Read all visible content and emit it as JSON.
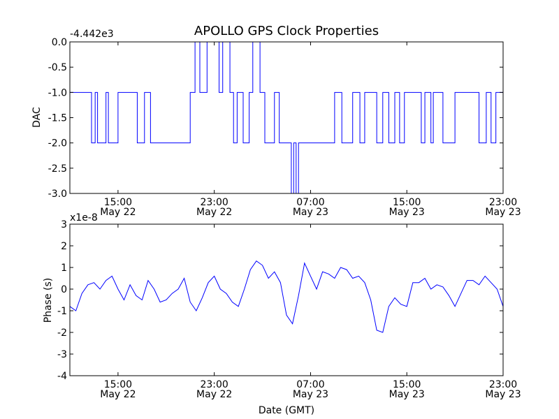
{
  "chart_data": [
    {
      "type": "line",
      "title": "APOLLO GPS Clock Properties",
      "offset_label": "-4.442e3",
      "ylabel": "DAC",
      "xlabel": "",
      "ylim": [
        -3.0,
        0.0
      ],
      "xlim": [
        0,
        36
      ],
      "yticks": [
        0.0,
        -0.5,
        -1.0,
        -1.5,
        -2.0,
        -2.5,
        -3.0
      ],
      "ytick_labels": [
        "0.0",
        "-0.5",
        "-1.0",
        "-1.5",
        "-2.0",
        "-2.5",
        "-3.0"
      ],
      "xticks": [
        {
          "x": 4,
          "time": "15:00",
          "date": "May 22"
        },
        {
          "x": 12,
          "time": "23:00",
          "date": "May 22"
        },
        {
          "x": 20,
          "time": "07:00",
          "date": "May 23"
        },
        {
          "x": 28,
          "time": "15:00",
          "date": "May 23"
        },
        {
          "x": 36,
          "time": "23:00",
          "date": "May 23"
        }
      ],
      "line_color": "#0000ff",
      "series": [
        {
          "x": [
            0.0,
            1.8,
            1.8,
            2.1,
            2.1,
            2.3,
            2.3,
            3.0,
            3.0,
            3.2,
            3.2,
            4.0,
            4.0,
            5.6,
            5.6,
            6.2,
            6.2,
            6.7,
            6.7,
            10.0,
            10.0,
            10.4,
            10.4,
            10.8,
            10.8,
            11.4,
            11.4,
            12.4,
            12.4,
            12.7,
            12.7,
            13.3,
            13.3,
            13.6,
            13.6,
            13.9,
            13.9,
            14.4,
            14.4,
            14.9,
            14.9,
            15.2,
            15.2,
            15.8,
            15.8,
            16.2,
            16.2,
            17.0,
            17.0,
            17.4,
            17.4,
            17.7,
            17.7,
            18.4,
            18.4,
            18.6,
            18.6,
            18.8,
            18.8,
            19.0,
            19.0,
            22.0,
            22.0,
            22.6,
            22.6,
            23.5,
            23.5,
            24.1,
            24.1,
            24.5,
            24.5,
            25.5,
            25.5,
            26.0,
            26.0,
            26.5,
            26.5,
            27.0,
            27.0,
            27.4,
            27.4,
            27.8,
            27.8,
            29.2,
            29.2,
            29.5,
            29.5,
            30.0,
            30.0,
            30.2,
            30.2,
            31.0,
            31.0,
            32.0,
            32.0,
            34.0,
            34.0,
            34.6,
            34.6,
            35.0,
            35.0,
            35.4,
            35.4,
            36.0
          ],
          "y": [
            -1.0,
            -1.0,
            -2.0,
            -2.0,
            -1.0,
            -1.0,
            -2.0,
            -2.0,
            -1.0,
            -1.0,
            -2.0,
            -2.0,
            -1.0,
            -1.0,
            -2.0,
            -2.0,
            -1.0,
            -1.0,
            -2.0,
            -2.0,
            -1.0,
            -1.0,
            0.0,
            0.0,
            -1.0,
            -1.0,
            0.0,
            0.0,
            -1.0,
            -1.0,
            0.0,
            0.0,
            -1.0,
            -1.0,
            -2.0,
            -2.0,
            -1.0,
            -1.0,
            -2.0,
            -2.0,
            -1.0,
            -1.0,
            0.0,
            0.0,
            -1.0,
            -1.0,
            -2.0,
            -2.0,
            -1.0,
            -1.0,
            -2.0,
            -2.0,
            -2.0,
            -2.0,
            -3.0,
            -3.0,
            -2.0,
            -2.0,
            -3.0,
            -3.0,
            -2.0,
            -2.0,
            -1.0,
            -1.0,
            -2.0,
            -2.0,
            -1.0,
            -1.0,
            -2.0,
            -2.0,
            -1.0,
            -1.0,
            -2.0,
            -2.0,
            -1.0,
            -1.0,
            -2.0,
            -2.0,
            -1.0,
            -1.0,
            -2.0,
            -2.0,
            -1.0,
            -1.0,
            -2.0,
            -2.0,
            -1.0,
            -1.0,
            -2.0,
            -2.0,
            -1.0,
            -1.0,
            -2.0,
            -2.0,
            -1.0,
            -1.0,
            -2.0,
            -2.0,
            -1.0,
            -1.0,
            -2.0,
            -2.0,
            -1.0,
            -1.0
          ]
        }
      ]
    },
    {
      "type": "line",
      "title": "",
      "offset_label": "x1e-8",
      "ylabel": "Phase (s)",
      "xlabel": "Date (GMT)",
      "ylim": [
        -4,
        3
      ],
      "xlim": [
        0,
        36
      ],
      "yticks": [
        3,
        2,
        1,
        0,
        -1,
        -2,
        -3,
        -4
      ],
      "ytick_labels": [
        "3",
        "2",
        "1",
        "0",
        "-1",
        "-2",
        "-3",
        "-4"
      ],
      "xticks": [
        {
          "x": 4,
          "time": "15:00",
          "date": "May 22"
        },
        {
          "x": 12,
          "time": "23:00",
          "date": "May 22"
        },
        {
          "x": 20,
          "time": "07:00",
          "date": "May 23"
        },
        {
          "x": 28,
          "time": "15:00",
          "date": "May 23"
        },
        {
          "x": 36,
          "time": "23:00",
          "date": "May 23"
        }
      ],
      "line_color": "#0000ff",
      "series": [
        {
          "x": [
            0,
            0.5,
            1,
            1.5,
            2,
            2.5,
            3,
            3.5,
            4,
            4.5,
            5,
            5.5,
            6,
            6.5,
            7,
            7.5,
            8,
            8.5,
            9,
            9.5,
            10,
            10.5,
            11,
            11.5,
            12,
            12.5,
            13,
            13.5,
            14,
            14.5,
            15,
            15.5,
            16,
            16.5,
            17,
            17.5,
            18,
            18.5,
            19,
            19.5,
            20,
            20.5,
            21,
            21.5,
            22,
            22.5,
            23,
            23.5,
            24,
            24.5,
            25,
            25.5,
            26,
            26.5,
            27,
            27.5,
            28,
            28.5,
            29,
            29.5,
            30,
            30.5,
            31,
            31.5,
            32,
            32.5,
            33,
            33.5,
            34,
            34.5,
            35,
            35.5,
            36
          ],
          "y": [
            -0.8,
            -1.0,
            -0.2,
            0.2,
            0.3,
            0.0,
            0.4,
            0.6,
            0.0,
            -0.5,
            0.2,
            -0.3,
            -0.5,
            0.4,
            0.0,
            -0.6,
            -0.5,
            -0.2,
            0.0,
            0.5,
            -0.6,
            -1.0,
            -0.4,
            0.3,
            0.6,
            0.0,
            -0.2,
            -0.6,
            -0.8,
            0.0,
            0.9,
            1.3,
            1.1,
            0.5,
            0.8,
            0.3,
            -1.2,
            -1.6,
            -0.3,
            1.2,
            0.6,
            0.0,
            0.8,
            0.7,
            0.5,
            1.0,
            0.9,
            0.5,
            0.6,
            0.3,
            -0.5,
            -1.9,
            -2.0,
            -0.8,
            -0.4,
            -0.7,
            -0.8,
            0.3,
            0.3,
            0.5,
            0.0,
            0.2,
            0.1,
            -0.3,
            -0.8,
            -0.2,
            0.4,
            0.4,
            0.2,
            0.6,
            0.3,
            0.0,
            -0.8
          ]
        }
      ]
    }
  ]
}
